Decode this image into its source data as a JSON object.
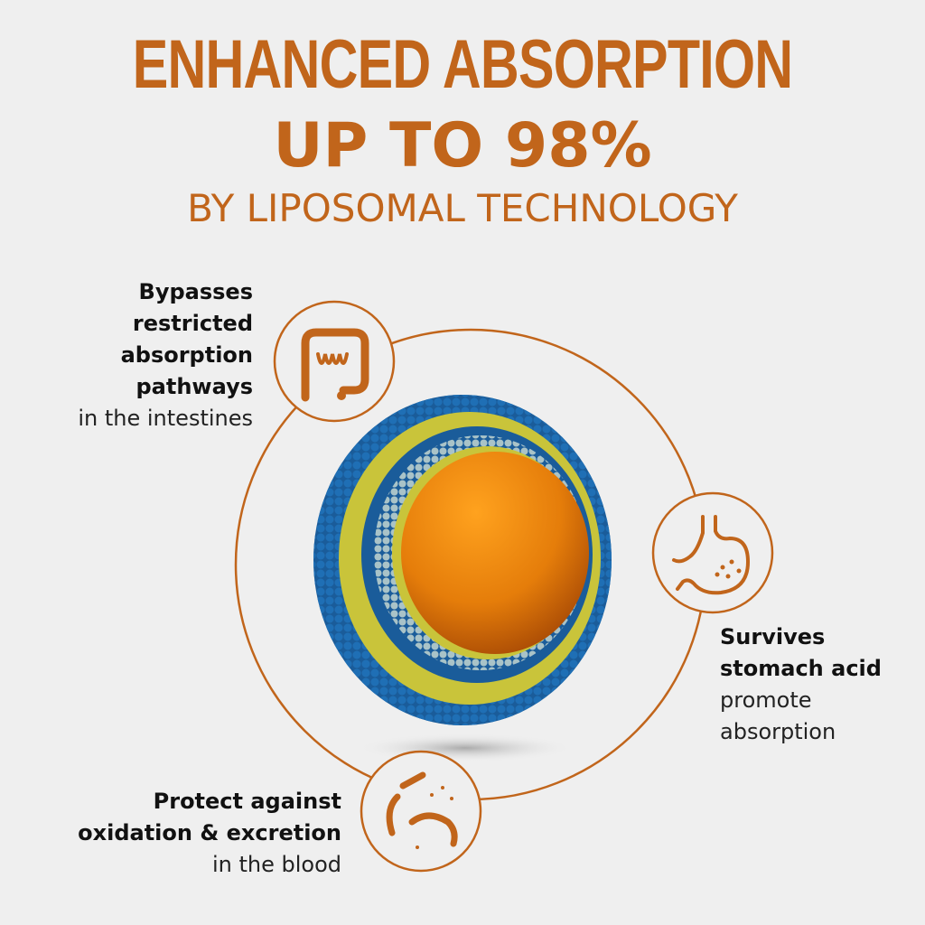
{
  "header": {
    "line1": "ENHANCED ABSORPTION",
    "line2": "UP TO 98%",
    "line3": "BY LIPOSOMAL TECHNOLOGY"
  },
  "colors": {
    "accent": "#c1651b",
    "background": "#efefef",
    "membrane_blue": "#1f6fb5",
    "core_orange": "#f08a0c"
  },
  "features": [
    {
      "icon": "intestine-icon",
      "bold": [
        "Bypasses",
        "restricted",
        "absorption",
        "pathways"
      ],
      "light": [
        "in the intestines"
      ]
    },
    {
      "icon": "stomach-icon",
      "bold": [
        "Survives",
        "stomach acid"
      ],
      "light": [
        "promote",
        "absorption"
      ]
    },
    {
      "icon": "bacteria-icon",
      "bold": [
        "Protect against",
        "oxidation & excretion"
      ],
      "light": [
        "in the blood"
      ]
    }
  ]
}
